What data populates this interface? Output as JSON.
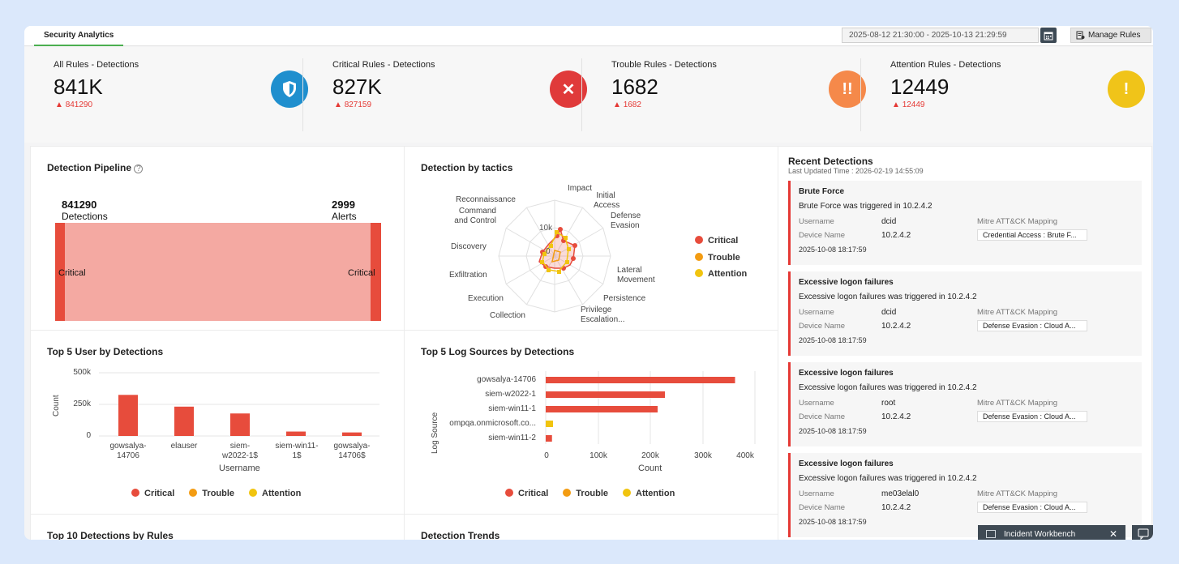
{
  "header": {
    "tab_label": "Security Analytics",
    "date_range": "2025-08-12 21:30:00 - 2025-10-13 21:29:59",
    "manage_rules_label": "Manage Rules"
  },
  "stats": [
    {
      "title": "All Rules - Detections",
      "value": "841K",
      "delta": "841290",
      "icon": "shield-icon",
      "color": "#1f8fce",
      "glyph": ""
    },
    {
      "title": "Critical Rules - Detections",
      "value": "827K",
      "delta": "827159",
      "icon": "close-icon",
      "color": "#e03a3a",
      "glyph": "✕"
    },
    {
      "title": "Trouble Rules - Detections",
      "value": "1682",
      "delta": "1682",
      "icon": "double-exclamation-icon",
      "color": "#f5894a",
      "glyph": "!!"
    },
    {
      "title": "Attention Rules - Detections",
      "value": "12449",
      "delta": "12449",
      "icon": "exclamation-icon",
      "color": "#f0c419",
      "glyph": "!"
    }
  ],
  "pipeline": {
    "title": "Detection Pipeline",
    "left_value": "841290",
    "left_label": "Detections",
    "right_value": "2999",
    "right_label": "Alerts",
    "left_band": "Critical",
    "right_band": "Critical"
  },
  "tactics": {
    "title": "Detection by tactics",
    "axes": [
      "Impact",
      "Initial Access",
      "Defense Evasion",
      "Lateral Movement",
      "Persistence",
      "Privilege Escalation...",
      "Collection",
      "Execution",
      "Exfiltration",
      "Discovery",
      "Command and Control",
      "Reconnaissance"
    ],
    "tick_10k": "10k",
    "tick_0": "0"
  },
  "legend": {
    "critical": "Critical",
    "trouble": "Trouble",
    "attention": "Attention"
  },
  "colors": {
    "critical": "#e74c3c",
    "trouble": "#f39c12",
    "attention": "#f1c40f"
  },
  "top_users": {
    "title": "Top 5 User by Detections",
    "ylabel": "Count",
    "xlabel": "Username",
    "yticks": [
      "500k",
      "250k",
      "0"
    ],
    "cat_lines": [
      [
        "gowsalya-",
        "14706"
      ],
      [
        "elauser"
      ],
      [
        "siem-",
        "w2022-1$"
      ],
      [
        "siem-win11-",
        "1$"
      ],
      [
        "gowsalya-",
        "14706$"
      ]
    ]
  },
  "top_logs": {
    "title": "Top 5 Log Sources by Detections",
    "ylabel": "Log Source",
    "xlabel": "Count",
    "xticks": [
      "0",
      "100k",
      "200k",
      "300k",
      "400k"
    ],
    "categories": [
      "gowsalya-14706",
      "siem-w2022-1",
      "siem-win11-1",
      "ompqa.onmicrosoft.co...",
      "siem-win11-2"
    ]
  },
  "chart_data": [
    {
      "type": "bar",
      "title": "Top 5 User by Detections",
      "categories": [
        "gowsalya-14706",
        "elauser",
        "siem-w2022-1$",
        "siem-win11-1$",
        "gowsalya-14706$"
      ],
      "series": [
        {
          "name": "Critical",
          "values": [
            325000,
            232000,
            178000,
            35000,
            28000
          ]
        }
      ],
      "xlabel": "Username",
      "ylabel": "Count",
      "ylim": [
        0,
        500000
      ]
    },
    {
      "type": "bar",
      "title": "Top 5 Log Sources by Detections",
      "categories": [
        "gowsalya-14706",
        "siem-w2022-1",
        "siem-win11-1",
        "ompqa.onmicrosoft.co...",
        "siem-win11-2"
      ],
      "series": [
        {
          "name": "Critical",
          "values": [
            362000,
            228000,
            214000,
            0,
            12000
          ]
        },
        {
          "name": "Attention",
          "values": [
            0,
            0,
            0,
            14000,
            0
          ]
        }
      ],
      "xlabel": "Count",
      "ylabel": "Log Source",
      "xlim": [
        0,
        400000
      ]
    }
  ],
  "bottom": {
    "rules_title": "Top 10 Detections by Rules",
    "trends_title": "Detection Trends"
  },
  "recent": {
    "title": "Recent Detections",
    "updated": "Last Updated Time : 2026-02-19 14:55:09",
    "username_key": "Username",
    "device_key": "Device Name",
    "mitre_key": "Mitre ATT&CK Mapping",
    "items": [
      {
        "name": "Brute Force",
        "desc": "Brute Force was triggered in 10.2.4.2",
        "username": "dcid",
        "device": "10.2.4.2",
        "mitre": "Credential Access : Brute F...",
        "time": "2025-10-08 18:17:59"
      },
      {
        "name": "Excessive logon failures",
        "desc": "Excessive logon failures was triggered in 10.2.4.2",
        "username": "dcid",
        "device": "10.2.4.2",
        "mitre": "Defense Evasion : Cloud A...",
        "time": "2025-10-08 18:17:59"
      },
      {
        "name": "Excessive logon failures",
        "desc": "Excessive logon failures was triggered in 10.2.4.2",
        "username": "root",
        "device": "10.2.4.2",
        "mitre": "Defense Evasion : Cloud A...",
        "time": "2025-10-08 18:17:59"
      },
      {
        "name": "Excessive logon failures",
        "desc": "Excessive logon failures was triggered in 10.2.4.2",
        "username": "me03elal0",
        "device": "10.2.4.2",
        "mitre": "Defense Evasion : Cloud A...",
        "time": "2025-10-08 18:17:59"
      }
    ]
  },
  "workbench": {
    "label": "Incident Workbench"
  }
}
